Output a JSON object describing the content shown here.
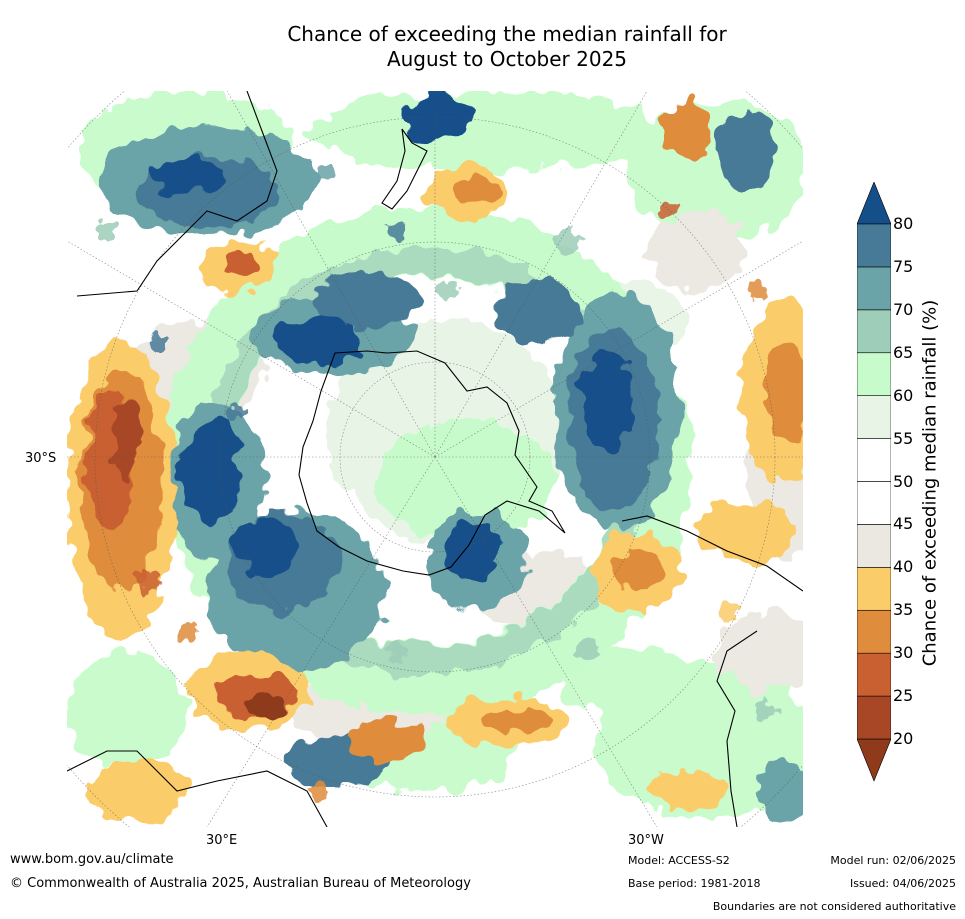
{
  "title": {
    "line1": "Chance of exceeding the median rainfall for",
    "line2": "August to October 2025"
  },
  "map": {
    "latitude_label": "30°S",
    "longitude_labels": {
      "east": "30°E",
      "west": "30°W"
    },
    "projection": "south polar stereographic",
    "features": [
      "Antarctica",
      "Australia",
      "New Zealand",
      "South America",
      "Africa"
    ]
  },
  "colorbar": {
    "label": "Chance of exceeding median rainfall (%)",
    "ticks": [
      "20",
      "25",
      "30",
      "35",
      "40",
      "45",
      "50",
      "55",
      "60",
      "65",
      "70",
      "75",
      "80"
    ],
    "bins": [
      {
        "range": "<20",
        "color": "#8e3a1b"
      },
      {
        "range": "20-25",
        "color": "#a84726"
      },
      {
        "range": "25-30",
        "color": "#c96031"
      },
      {
        "range": "30-35",
        "color": "#df8c3c"
      },
      {
        "range": "35-40",
        "color": "#fbcc6a"
      },
      {
        "range": "40-45",
        "color": "#ebe8e2"
      },
      {
        "range": "45-50",
        "color": "#ffffff"
      },
      {
        "range": "50-55",
        "color": "#ffffff"
      },
      {
        "range": "55-60",
        "color": "#e8f5e6"
      },
      {
        "range": "60-65",
        "color": "#c8fbcb"
      },
      {
        "range": "65-70",
        "color": "#9ecdb9"
      },
      {
        "range": "70-75",
        "color": "#6aa3a8"
      },
      {
        "range": "75-80",
        "color": "#477a96"
      },
      {
        "range": ">80",
        "color": "#154f89"
      }
    ]
  },
  "footer": {
    "url": "www.bom.gov.au/climate",
    "copyright": "© Commonwealth of Australia 2025, Australian Bureau of Meteorology",
    "model": "Model: ACCESS-S2",
    "base_period": "Base period: 1981-2018",
    "model_run": "Model run: 02/06/2025",
    "issued": "Issued: 04/06/2025",
    "disclaimer": "Boundaries are not considered authoritative"
  }
}
